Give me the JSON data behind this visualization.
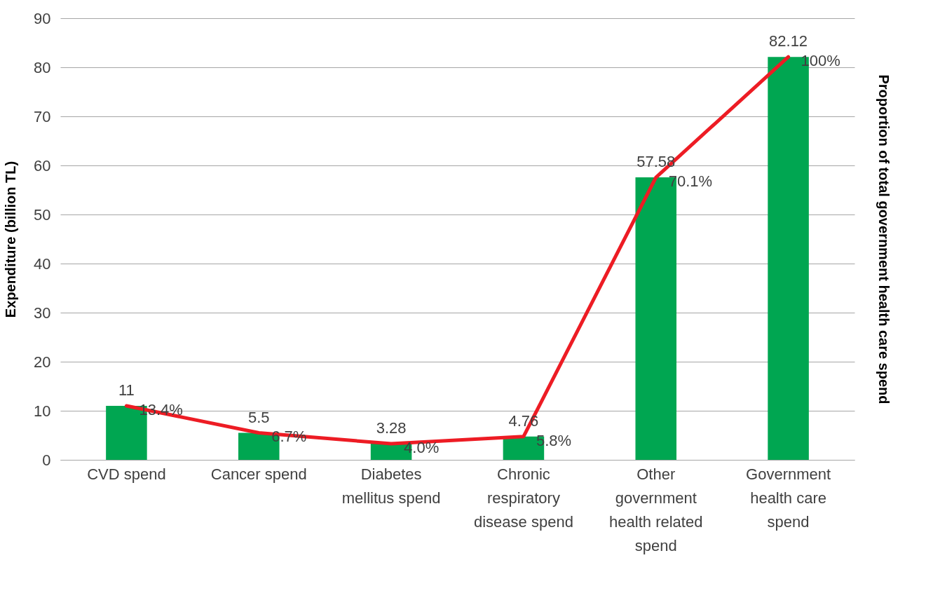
{
  "chart_data": {
    "type": "bar",
    "categories": [
      "CVD spend",
      "Cancer spend",
      "Diabetes mellitus spend",
      "Chronic respiratory disease spend",
      "Other government health related spend",
      "Government health care spend"
    ],
    "series": [
      {
        "color": "#00a651",
        "values": [
          11,
          5.5,
          3.28,
          4.76,
          57.58,
          82.12
        ]
      },
      {
        "type": "line",
        "axis": "y2",
        "color": "#ed1c24",
        "values": [
          13.4,
          6.7,
          4.0,
          5.8,
          70.1,
          100
        ],
        "value_labels": [
          "13.4%",
          "6.7%",
          "4.0%",
          "5.8%",
          "70.1%",
          "100%"
        ]
      }
    ],
    "data_labels": true,
    "ylabel": "Expenditure (billion TL)",
    "y2label": "Proportion of total government health care spend",
    "ylim": [
      0,
      90
    ],
    "yticks": [
      0,
      10,
      20,
      30,
      40,
      50,
      60,
      70,
      80,
      90
    ],
    "y2lim": [
      0,
      109.6
    ],
    "grid": "y",
    "marker": "none",
    "line_style": "solid"
  }
}
